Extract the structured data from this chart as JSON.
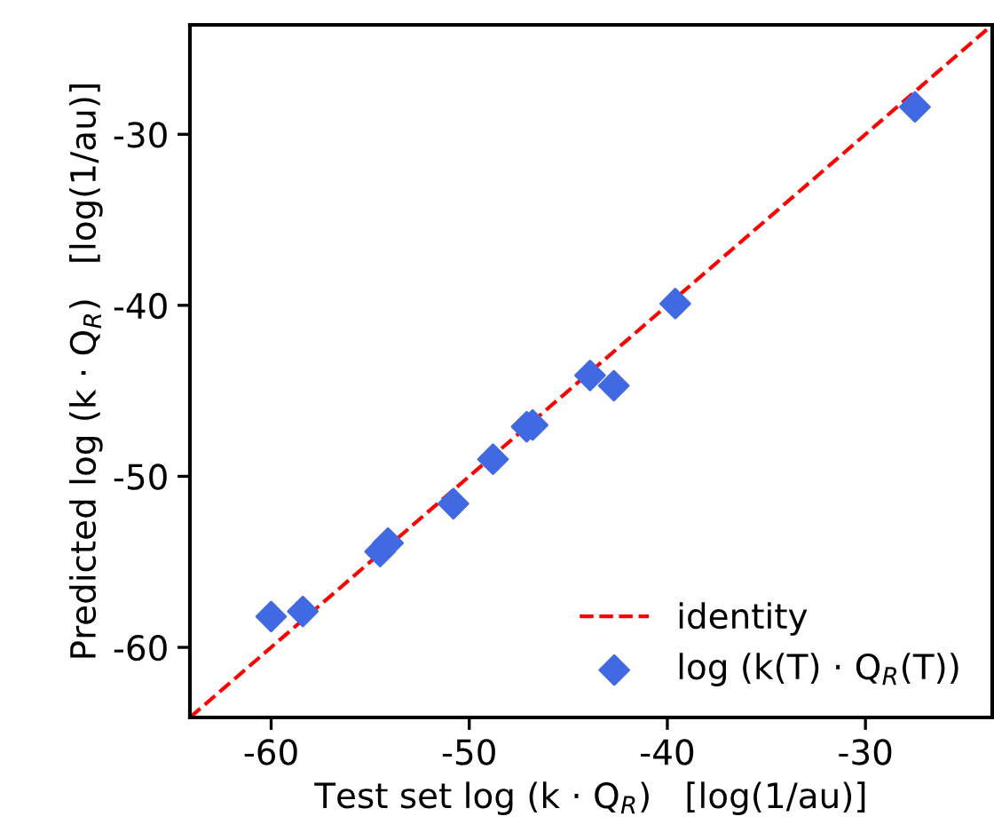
{
  "chart_data": {
    "type": "scatter",
    "xlabel": "Test set log (k · Q$_{R}$)   [log(1/au)]",
    "ylabel": "Predicted log (k · Q$_{R}$)   [log(1/au)]",
    "xlim": [
      -64.1,
      -23.6
    ],
    "ylim": [
      -64.1,
      -23.6
    ],
    "xticks": [
      -60,
      -50,
      -40,
      -30
    ],
    "yticks": [
      -60,
      -50,
      -40,
      -30
    ],
    "grid": false,
    "legend": "bottom right",
    "series": [
      {
        "name": "identity",
        "type": "line",
        "line_style": "dashed",
        "marker": "none",
        "color": "#ff0000",
        "x": [
          -64.1,
          -23.6
        ],
        "values": [
          -64.1,
          -23.6
        ]
      },
      {
        "name": "log (k(T) · Q$_{R}$(T))",
        "marker": "diamond",
        "color": "#4169e1",
        "x": [
          -60.0,
          -58.4,
          -54.5,
          -54.1,
          -50.8,
          -48.8,
          -47.1,
          -46.8,
          -43.9,
          -42.7,
          -39.6,
          -27.5
        ],
        "values": [
          -58.2,
          -57.9,
          -54.4,
          -53.9,
          -51.6,
          -49.0,
          -47.1,
          -47.0,
          -44.1,
          -44.7,
          -39.9,
          -28.4
        ]
      }
    ]
  }
}
